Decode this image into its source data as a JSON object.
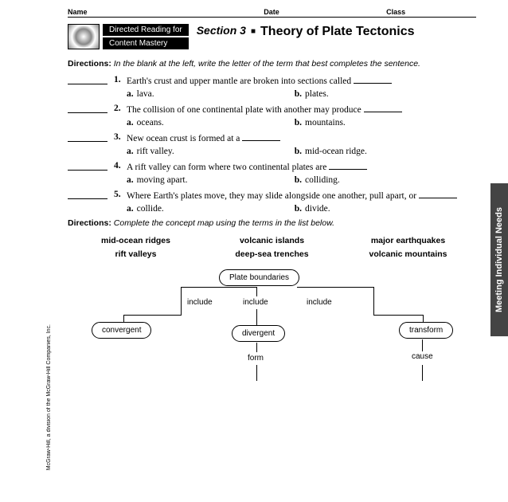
{
  "header": {
    "name": "Name",
    "date": "Date",
    "class": "Class"
  },
  "tag1": "Directed Reading for",
  "tag2": "Content Mastery",
  "section_label": "Section 3",
  "topic": "Theory of Plate Tectonics",
  "directions1_label": "Directions:",
  "directions1_text": "In the blank at the left, write the letter of the term that best completes the sentence.",
  "questions": [
    {
      "n": "1.",
      "text": "Earth's crust and upper mantle are broken into sections called ",
      "a": "lava.",
      "b": "plates."
    },
    {
      "n": "2.",
      "text": "The collision of one continental plate with another may produce ",
      "a": "oceans.",
      "b": "mountains."
    },
    {
      "n": "3.",
      "text": "New ocean crust is formed at a ",
      "a": "rift valley.",
      "b": "mid-ocean ridge."
    },
    {
      "n": "4.",
      "text": "A rift valley can form where two continental plates are ",
      "a": "moving apart.",
      "b": "colliding."
    },
    {
      "n": "5.",
      "text": "Where Earth's plates move, they may slide alongside one another, pull apart, or ",
      "a": "collide.",
      "b": "divide."
    }
  ],
  "directions2_label": "Directions:",
  "directions2_text": "Complete the concept map using the terms in the list below.",
  "terms": {
    "col1": [
      "mid-ocean ridges",
      "rift valleys"
    ],
    "col2": [
      "volcanic islands",
      "deep-sea trenches"
    ],
    "col3": [
      "major earthquakes",
      "volcanic mountains"
    ]
  },
  "map": {
    "root": "Plate boundaries",
    "n1": "convergent",
    "n2": "divergent",
    "n3": "transform",
    "include": "include",
    "form": "form",
    "cause": "cause"
  },
  "side_tab": "Meeting Individual Needs",
  "copyright": "McGraw-Hill, a division of the McGraw-Hill Companies, Inc."
}
